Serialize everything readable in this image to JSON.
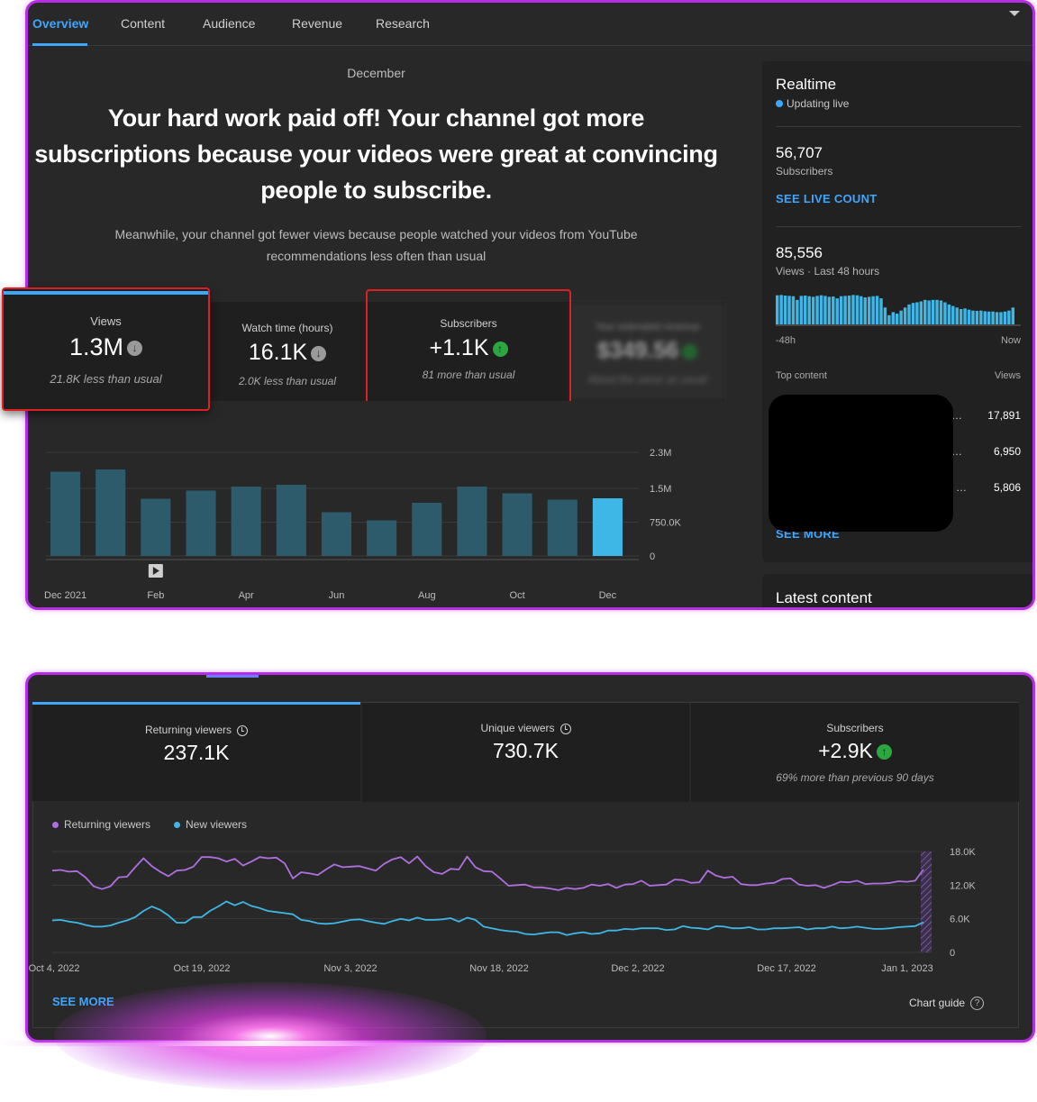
{
  "tabs": [
    "Overview",
    "Content",
    "Audience",
    "Revenue",
    "Research"
  ],
  "overview": {
    "month": "December",
    "headline": "Your hard work paid off! Your channel got more subscriptions because your videos were great at convincing people to subscribe.",
    "subline": "Meanwhile, your channel got fewer views because people watched your videos from YouTube recommendations less often than usual",
    "cards": [
      {
        "label": "Views",
        "value": "1.3M",
        "trend": "down",
        "note": "21.8K less than usual"
      },
      {
        "label": "Watch time (hours)",
        "value": "16.1K",
        "trend": "down",
        "note": "2.0K less than usual"
      },
      {
        "label": "Subscribers",
        "value": "+1.1K",
        "trend": "up",
        "note": "81 more than usual"
      },
      {
        "label": "Your estimated revenue",
        "value": "$349.56",
        "trend": "flat",
        "note": "About the same as usual"
      }
    ]
  },
  "views_chart": {
    "type": "bar",
    "categories": [
      "Dec 2021",
      "Jan",
      "Feb",
      "Mar",
      "Apr",
      "May",
      "Jun",
      "Jul",
      "Aug",
      "Sep",
      "Oct",
      "Nov",
      "Dec"
    ],
    "x_tick_labels": [
      "Dec 2021",
      "Feb",
      "Apr",
      "Jun",
      "Aug",
      "Oct",
      "Dec"
    ],
    "values": [
      1870000,
      1920000,
      1270000,
      1450000,
      1540000,
      1580000,
      970000,
      790000,
      1180000,
      1540000,
      1390000,
      1250000,
      1280000
    ],
    "y_ticks": [
      "0",
      "750.0K",
      "1.5M",
      "2.3M"
    ],
    "ylim": [
      0,
      2300000
    ],
    "highlight_last": true,
    "colors": {
      "bar": "#2e5b6c",
      "highlight": "#3fb7e6"
    }
  },
  "realtime": {
    "title": "Realtime",
    "live_label": "Updating live",
    "subscribers_value": "56,707",
    "subscribers_label": "Subscribers",
    "see_live_count": "SEE LIVE COUNT",
    "views_value": "85,556",
    "views_label": "Views · Last 48 hours",
    "spark_start": "-48h",
    "spark_end": "Now",
    "spark_values": [
      95,
      96,
      94,
      93,
      92,
      80,
      93,
      94,
      92,
      90,
      93,
      95,
      93,
      90,
      91,
      85,
      92,
      93,
      94,
      96,
      95,
      92,
      88,
      90,
      92,
      93,
      85,
      55,
      30,
      40,
      35,
      45,
      55,
      65,
      70,
      72,
      75,
      80,
      78,
      80,
      80,
      78,
      72,
      65,
      60,
      55,
      50,
      52,
      48,
      45,
      44,
      45,
      43,
      42,
      42,
      40,
      40,
      42,
      45,
      55
    ],
    "top_content_label": "Top content",
    "views_col_label": "Views",
    "top_items": [
      {
        "views": "17,891"
      },
      {
        "views": "6,950"
      },
      {
        "views": "5,806"
      }
    ],
    "see_more": "SEE MORE"
  },
  "latest_content": {
    "title": "Latest content"
  },
  "audience": {
    "cards": [
      {
        "label": "Returning viewers",
        "value": "237.1K"
      },
      {
        "label": "Unique viewers",
        "value": "730.7K"
      },
      {
        "label": "Subscribers",
        "value": "+2.9K",
        "trend": "up",
        "note": "69% more than previous 90 days"
      }
    ],
    "legend": [
      "Returning viewers",
      "New viewers"
    ],
    "see_more": "SEE MORE",
    "chart_guide": "Chart guide"
  },
  "chart_data": [
    {
      "type": "bar",
      "title": "",
      "categories": [
        "Dec 2021",
        "Jan",
        "Feb",
        "Mar",
        "Apr",
        "May",
        "Jun",
        "Jul",
        "Aug",
        "Sep",
        "Oct",
        "Nov",
        "Dec"
      ],
      "values": [
        1870000,
        1920000,
        1270000,
        1450000,
        1540000,
        1580000,
        970000,
        790000,
        1180000,
        1540000,
        1390000,
        1250000,
        1280000
      ],
      "ylim": [
        0,
        2300000
      ],
      "y_ticks": [
        0,
        750000,
        1500000,
        2300000
      ]
    },
    {
      "type": "line",
      "title": "",
      "x_ticks": [
        "Oct 4, 2022",
        "Oct 19, 2022",
        "Nov 3, 2022",
        "Nov 18, 2022",
        "Dec 2, 2022",
        "Dec 17, 2022",
        "Jan 1, 2023"
      ],
      "y_ticks": [
        "0",
        "6.0K",
        "12.0K",
        "18.0K"
      ],
      "ylim": [
        0,
        18000
      ],
      "series": [
        {
          "name": "Returning viewers",
          "color": "#b06fe0",
          "values": [
            14600,
            14700,
            14400,
            14500,
            13400,
            11800,
            11300,
            11800,
            13400,
            13500,
            15200,
            16800,
            15400,
            14400,
            13600,
            14600,
            14700,
            15300,
            17000,
            17000,
            16800,
            16200,
            16700,
            15500,
            16200,
            17000,
            16800,
            16900,
            15900,
            13200,
            14300,
            14100,
            13800,
            14800,
            15700,
            15200,
            15300,
            15400,
            15000,
            14600,
            15800,
            16600,
            17000,
            15900,
            17100,
            15400,
            14300,
            14000,
            14900,
            14800,
            17100,
            15200,
            14500,
            14400,
            13200,
            11900,
            12000,
            12100,
            11600,
            11600,
            11400,
            11100,
            11500,
            11300,
            11500,
            12100,
            11900,
            12200,
            11500,
            12100,
            12200,
            12800,
            11900,
            12000,
            12100,
            13000,
            12900,
            12400,
            12500,
            14600,
            13700,
            13300,
            13500,
            12200,
            12000,
            12000,
            12300,
            12400,
            13100,
            13200,
            12100,
            11900,
            12000,
            11500,
            12000,
            12600,
            12500,
            12800,
            12200,
            12300,
            12300,
            12400,
            12700,
            12600,
            12800,
            14800
          ]
        },
        {
          "name": "New viewers",
          "color": "#3fb7e6",
          "values": [
            5700,
            5800,
            5500,
            5300,
            4900,
            4600,
            4600,
            4800,
            5300,
            5700,
            6300,
            7400,
            8200,
            7600,
            6600,
            5300,
            5300,
            6300,
            6300,
            7400,
            8200,
            9100,
            8400,
            9000,
            8300,
            7900,
            7400,
            7200,
            7000,
            6800,
            5800,
            5600,
            5200,
            5100,
            5200,
            5500,
            5800,
            5900,
            5600,
            5300,
            5100,
            5600,
            6000,
            5700,
            6200,
            5800,
            5800,
            5900,
            6100,
            5500,
            6200,
            5800,
            4600,
            4300,
            4000,
            3800,
            3700,
            3300,
            3200,
            3400,
            3600,
            3600,
            3100,
            3400,
            3600,
            3300,
            3400,
            3900,
            3900,
            4200,
            4100,
            4300,
            4300,
            4300,
            4000,
            4100,
            4700,
            4400,
            4300,
            4100,
            4700,
            4600,
            4300,
            4300,
            4500,
            4100,
            4100,
            4300,
            4300,
            4400,
            4500,
            4100,
            4300,
            4300,
            4600,
            4300,
            4400,
            4600,
            4400,
            4200,
            4200,
            4300,
            4500,
            4600,
            4700,
            5400
          ]
        }
      ]
    }
  ]
}
